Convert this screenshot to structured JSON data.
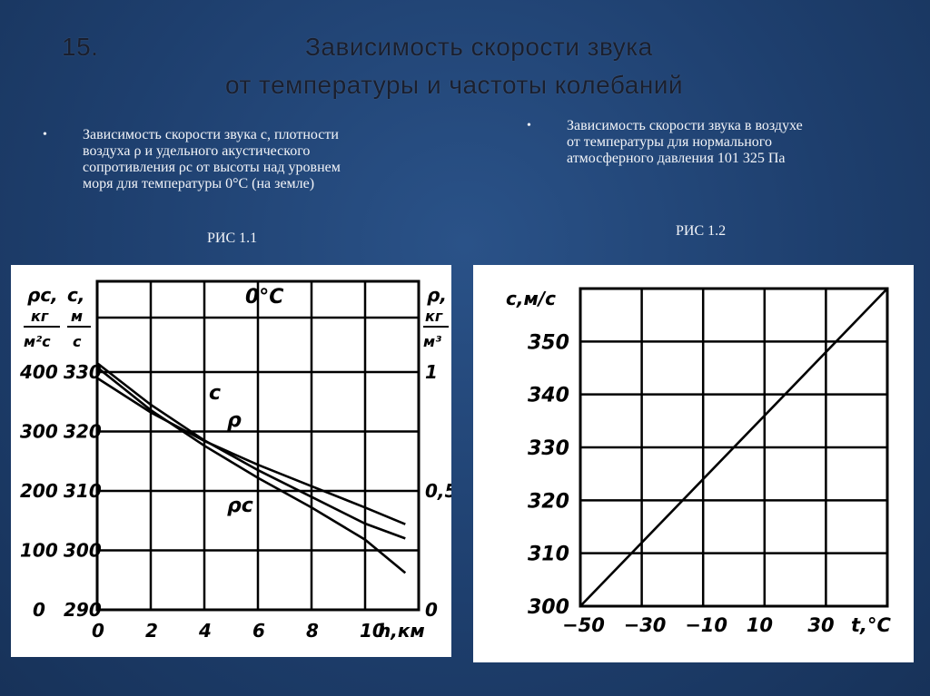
{
  "slide": {
    "number": "15.",
    "title_line1": "Зависимость скорости звука",
    "title_line2": "от температуры и частоты колебаний"
  },
  "bullets": [
    {
      "marker": "•",
      "line1": "Зависимость скорости звука с, плотности",
      "line2": "воздуха ρ  и удельного   акустического",
      "line3": "сопротивления ρс от высоты над уровнем",
      "line4": "моря для температуры 0°С (на земле)"
    },
    {
      "marker": "•",
      "line1": "Зависимость скорости звука в воздухе",
      "line2": "от температуры для нормального",
      "line3": "атмосферного давления 101 325 Па"
    }
  ],
  "figure_labels": [
    "РИС  1.1",
    "РИС  1.2"
  ],
  "colors": {
    "background": "#1e3f6e",
    "panel": "#ffffff",
    "ink": "#000000"
  },
  "chart_data": [
    {
      "type": "line",
      "title": "0°C",
      "xlabel": "h,км",
      "xlim": [
        0,
        12
      ],
      "x_ticks": [
        "0",
        "2",
        "4",
        "6",
        "8",
        "10"
      ],
      "grid": true,
      "axes": {
        "rho_c": {
          "label_top": "ρс,",
          "label_num": "кг",
          "label_den": "м²с",
          "ticks": [
            "400",
            "300",
            "200",
            "100",
            "0"
          ],
          "range": [
            0,
            400
          ]
        },
        "c": {
          "label_top": "с,",
          "label_num": "м",
          "label_den": "с",
          "ticks": [
            "330",
            "320",
            "310",
            "300",
            "290"
          ],
          "range": [
            290,
            330
          ]
        },
        "rho": {
          "label_top": "ρ,",
          "label_num": "кг",
          "label_den": "м³",
          "ticks": [
            "1",
            "0,5",
            "0"
          ],
          "range": [
            0,
            1
          ]
        }
      },
      "series": [
        {
          "name": "с",
          "axis": "c",
          "x": [
            0,
            2,
            4,
            6,
            8,
            10,
            11.5
          ],
          "y": [
            331.5,
            324.5,
            318.5,
            313.5,
            309.0,
            304.5,
            302.0
          ]
        },
        {
          "name": "ρ",
          "axis": "rho",
          "x": [
            0,
            2,
            4,
            6,
            8,
            10,
            11.5
          ],
          "y": [
            0.975,
            0.83,
            0.71,
            0.61,
            0.52,
            0.43,
            0.36
          ]
        },
        {
          "name": "ρс",
          "axis": "rho_c",
          "x": [
            0,
            2,
            4,
            6,
            8,
            10,
            11.5
          ],
          "y": [
            408,
            336,
            276,
            222,
            172,
            118,
            62
          ]
        }
      ]
    },
    {
      "type": "line",
      "title": "",
      "ylabel": "с,м/с",
      "xlabel": "t,°С",
      "xlim": [
        -50,
        50
      ],
      "ylim": [
        300,
        355
      ],
      "x_ticks": [
        "-50",
        "-30",
        "-10",
        "10",
        "30"
      ],
      "y_ticks": [
        "350",
        "340",
        "330",
        "320",
        "310",
        "300"
      ],
      "grid": true,
      "series": [
        {
          "x": [
            -50,
            50
          ],
          "y": [
            300.0,
            360.0
          ]
        }
      ]
    }
  ]
}
